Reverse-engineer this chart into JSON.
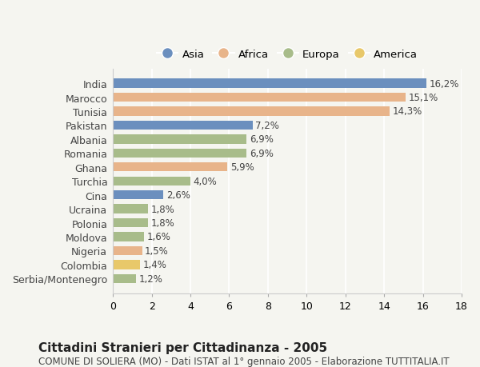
{
  "countries": [
    "India",
    "Marocco",
    "Tunisia",
    "Pakistan",
    "Albania",
    "Romania",
    "Ghana",
    "Turchia",
    "Cina",
    "Ucraina",
    "Polonia",
    "Moldova",
    "Nigeria",
    "Colombia",
    "Serbia/Montenegro"
  ],
  "values": [
    16.2,
    15.1,
    14.3,
    7.2,
    6.9,
    6.9,
    5.9,
    4.0,
    2.6,
    1.8,
    1.8,
    1.6,
    1.5,
    1.4,
    1.2
  ],
  "labels": [
    "16,2%",
    "15,1%",
    "14,3%",
    "7,2%",
    "6,9%",
    "6,9%",
    "5,9%",
    "4,0%",
    "2,6%",
    "1,8%",
    "1,8%",
    "1,6%",
    "1,5%",
    "1,4%",
    "1,2%"
  ],
  "continents": [
    "Asia",
    "Africa",
    "Africa",
    "Asia",
    "Europa",
    "Europa",
    "Africa",
    "Europa",
    "Asia",
    "Europa",
    "Europa",
    "Europa",
    "Africa",
    "America",
    "Europa"
  ],
  "continent_colors": {
    "Asia": "#6b8fbe",
    "Africa": "#e8b48a",
    "Europa": "#a8bc8a",
    "America": "#e8c86a"
  },
  "legend_order": [
    "Asia",
    "Africa",
    "Europa",
    "America"
  ],
  "title": "Cittadini Stranieri per Cittadinanza - 2005",
  "subtitle": "COMUNE DI SOLIERA (MO) - Dati ISTAT al 1° gennaio 2005 - Elaborazione TUTTITALIA.IT",
  "xlim": [
    0,
    18
  ],
  "xticks": [
    0,
    2,
    4,
    6,
    8,
    10,
    12,
    14,
    16,
    18
  ],
  "background_color": "#f5f5f0",
  "grid_color": "#ffffff",
  "bar_height": 0.65,
  "title_fontsize": 11,
  "subtitle_fontsize": 8.5,
  "label_fontsize": 8.5,
  "tick_fontsize": 9,
  "legend_fontsize": 9.5
}
